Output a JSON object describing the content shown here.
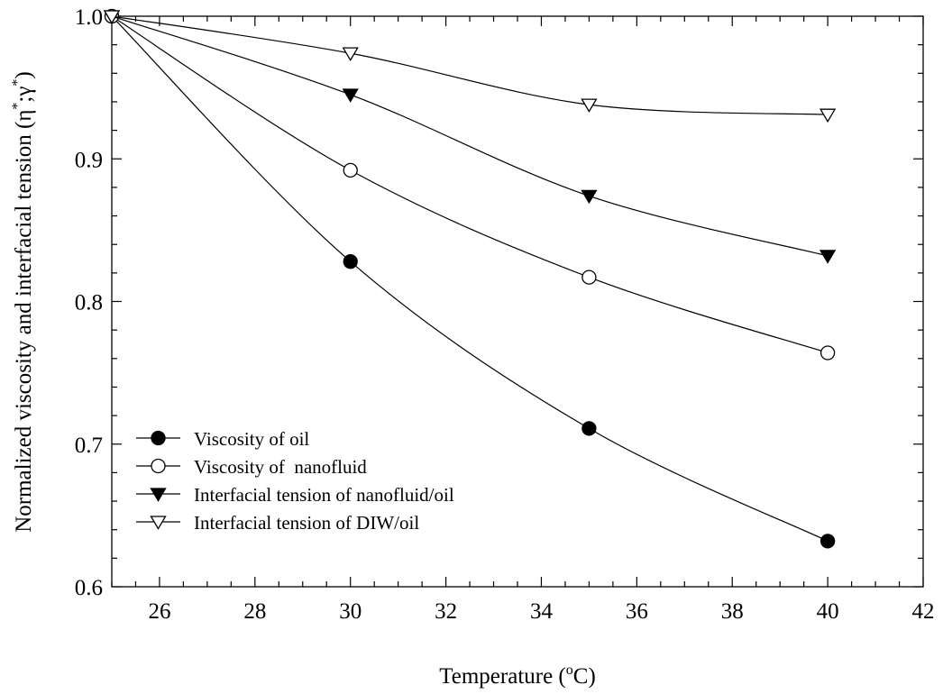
{
  "chart_data": {
    "type": "line",
    "xlabel": "Temperature (",
    "xlabel_sup": "o",
    "xlabel_end": "C)",
    "ylabel_main": "Normalized viscosity and interfacial tension (",
    "ylabel_eta": "η",
    "ylabel_star1": "*",
    "ylabel_sep": ";",
    "ylabel_gamma": "γ",
    "ylabel_star2": "*",
    "ylabel_end": ")",
    "xlim": [
      25,
      42
    ],
    "ylim": [
      0.6,
      1.0
    ],
    "x_ticks": [
      26,
      28,
      30,
      32,
      34,
      36,
      38,
      40,
      42
    ],
    "x_tick_labels": [
      "26",
      "28",
      "30",
      "32",
      "34",
      "36",
      "38",
      "40",
      "42"
    ],
    "y_ticks": [
      0.6,
      0.7,
      0.8,
      0.9,
      1.0
    ],
    "y_tick_labels": [
      "0.6",
      "0.7",
      "0.8",
      "0.9",
      "1.0"
    ],
    "grid": false,
    "legend_position": "lower-left",
    "series": [
      {
        "name": "Viscosity of oil",
        "marker": "circle-filled",
        "x": [
          25,
          30,
          35,
          40
        ],
        "values": [
          1.0,
          0.828,
          0.711,
          0.632
        ]
      },
      {
        "name": "Viscosity of  nanofluid",
        "marker": "circle-open",
        "x": [
          25,
          30,
          35,
          40
        ],
        "values": [
          1.0,
          0.892,
          0.817,
          0.764
        ]
      },
      {
        "name": "Interfacial tension of nanofluid/oil",
        "marker": "triangle-down-filled",
        "x": [
          25,
          30,
          35,
          40
        ],
        "values": [
          1.0,
          0.945,
          0.874,
          0.832
        ]
      },
      {
        "name": "Interfacial tension of DIW/oil",
        "marker": "triangle-down-open",
        "x": [
          25,
          30,
          35,
          40
        ],
        "values": [
          1.0,
          0.974,
          0.938,
          0.931
        ]
      }
    ]
  }
}
